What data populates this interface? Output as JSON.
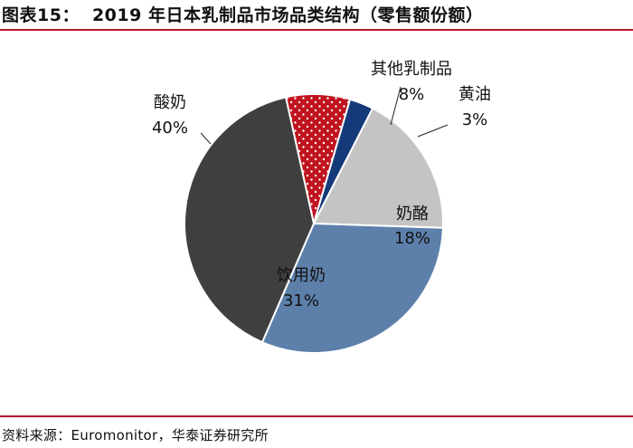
{
  "figure": {
    "label": "图表15：",
    "title": "2019 年日本乳制品市场品类结构（零售额份额）",
    "source": "资料来源：Euromonitor，华泰证券研究所",
    "accent_color": "#b5162b"
  },
  "chart_data": {
    "type": "pie",
    "unit": "%",
    "slices": [
      {
        "name": "其他乳制品",
        "value": 8,
        "color": "#c0141f",
        "pattern": "dots",
        "label_pos": "outside"
      },
      {
        "name": "黄油",
        "value": 3,
        "color": "#153a7a",
        "pattern": "none",
        "label_pos": "outside"
      },
      {
        "name": "奶酪",
        "value": 18,
        "color": "#c4c4c4",
        "pattern": "none",
        "label_pos": "inside"
      },
      {
        "name": "饮用奶",
        "value": 31,
        "color": "#5d80ab",
        "pattern": "none",
        "label_pos": "inside"
      },
      {
        "name": "酸奶",
        "value": 40,
        "color": "#3f3f3f",
        "pattern": "none",
        "label_pos": "outside"
      }
    ]
  }
}
